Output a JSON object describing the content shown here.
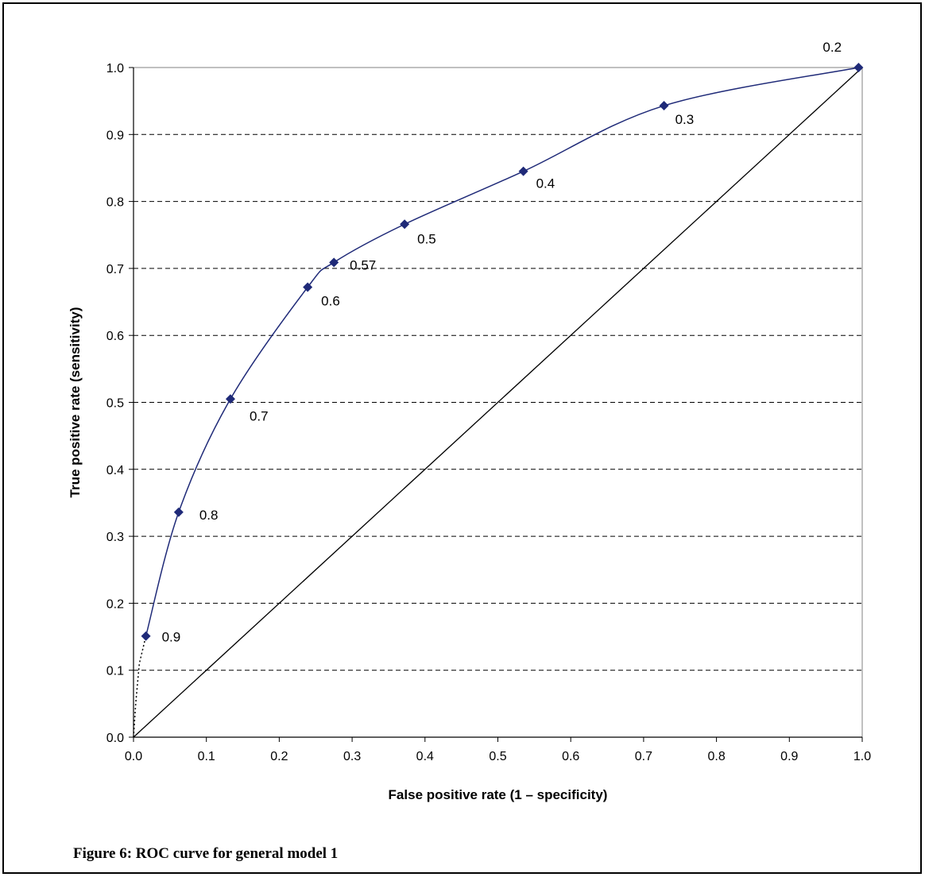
{
  "caption": "Figure 6:  ROC curve for general model 1",
  "colors": {
    "curve": "#1f2a78",
    "marker": "#1f2a78",
    "diagonal": "#000000",
    "grid": "#000000"
  },
  "chart_data": {
    "type": "line",
    "title": "",
    "xlabel": "False positive rate (1 – specificity)",
    "ylabel": "True positive rate (sensitivity)",
    "xlim": [
      0,
      1
    ],
    "ylim": [
      0,
      1
    ],
    "x_ticks": [
      "0.0",
      "0.1",
      "0.2",
      "0.3",
      "0.4",
      "0.5",
      "0.6",
      "0.7",
      "0.8",
      "0.9",
      "1.0"
    ],
    "y_ticks": [
      "0.0",
      "0.1",
      "0.2",
      "0.3",
      "0.4",
      "0.5",
      "0.6",
      "0.7",
      "0.8",
      "0.9",
      "1.0"
    ],
    "grid": "horizontal dashed",
    "series": [
      {
        "style": "solid line with diamond markers",
        "x": [
          0.017,
          0.062,
          0.133,
          0.239,
          0.275,
          0.372,
          0.535,
          0.728,
          0.995
        ],
        "y": [
          0.151,
          0.336,
          0.505,
          0.672,
          0.709,
          0.766,
          0.845,
          0.943,
          1.0
        ],
        "point_labels": [
          "0.9",
          "0.8",
          "0.7",
          "0.6",
          "0.57",
          "0.5",
          "0.4",
          "0.3",
          "0.2"
        ]
      },
      {
        "style": "dotted extrapolation",
        "x": [
          0.0,
          0.003,
          0.008,
          0.017
        ],
        "y": [
          0.0,
          0.05,
          0.11,
          0.151
        ]
      },
      {
        "style": "diagonal reference line",
        "x": [
          0.0,
          1.0
        ],
        "y": [
          0.0,
          1.0
        ]
      }
    ]
  }
}
